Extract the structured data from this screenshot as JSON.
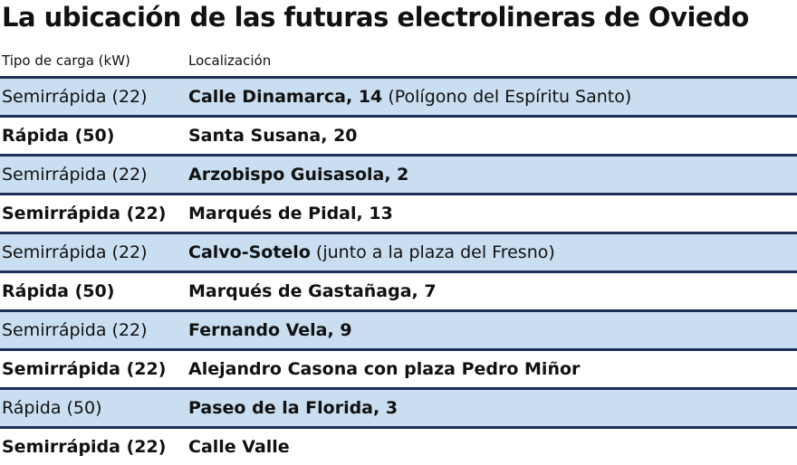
{
  "header": {
    "title": "La ubicación de las futuras electrolineras de Oviedo"
  },
  "table": {
    "columns": [
      "Tipo de carga (kW)",
      "Localización"
    ],
    "rows": [
      {
        "type": "Semirrápida (22)",
        "location": "Calle Dinamarca, 14",
        "note": "(Polígono del Espíritu Santo)"
      },
      {
        "type": "Rápida (50)",
        "location": "Santa Susana, 20"
      },
      {
        "type": "Semirrápida (22)",
        "location": "Arzobispo Guisasola, 2"
      },
      {
        "type": "Semirrápida (22)",
        "location": "Marqués de Pidal, 13"
      },
      {
        "type": "Semirrápida (22)",
        "location": "Calvo-Sotelo",
        "note": "(junto a la plaza del Fresno)"
      },
      {
        "type": "Rápida (50)",
        "location": "Marqués de Gastañaga, 7"
      },
      {
        "type": "Semirrápida (22)",
        "location": "Fernando Vela, 9"
      },
      {
        "type": "Semirrápida (22)",
        "location": "Alejandro Casona con plaza Pedro Miñor"
      },
      {
        "type": "Rápida (50)",
        "location": "Paseo de la Florida, 3"
      },
      {
        "type": "Semirrápida (22)",
        "location": "Calle Valle"
      }
    ]
  }
}
